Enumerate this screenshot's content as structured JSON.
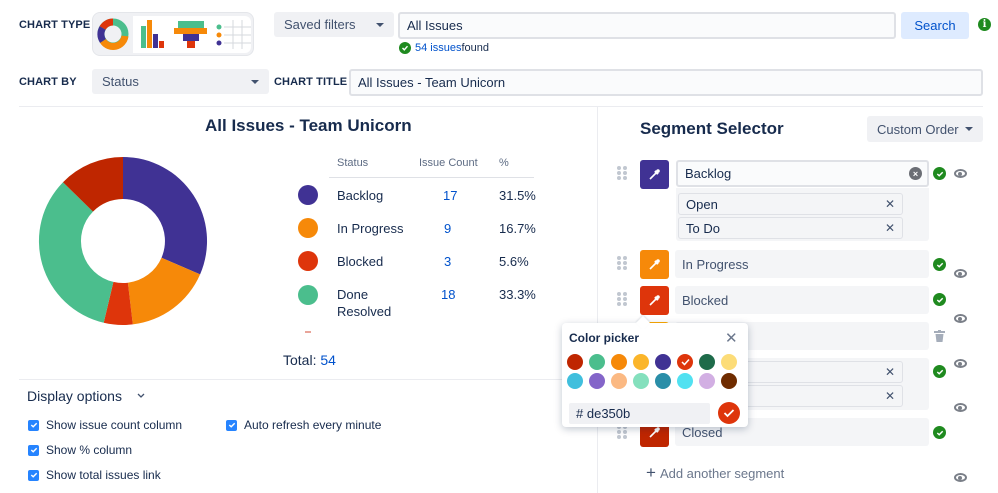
{
  "toolbar": {
    "chart_type_label": "CHART TYPE",
    "chart_types": [
      "donut-chart",
      "bar-chart",
      "funnel-chart",
      "table-chart"
    ],
    "saved_filters_label": "Saved filters",
    "filter_query": "All Issues",
    "search_label": "Search",
    "found_count": "54 issues",
    "found_suffix": " found",
    "chart_by_label": "CHART BY",
    "chart_by_value": "Status",
    "chart_title_label": "CHART TITLE",
    "chart_title_value": "All Issues - Team Unicorn"
  },
  "chart": {
    "title": "All Issues - Team Unicorn",
    "table_headers": {
      "status": "Status",
      "count": "Issue Count",
      "pct": "%"
    },
    "rows": [
      {
        "status": "Backlog",
        "count": "17",
        "pct": "31.5%",
        "color": "#403294"
      },
      {
        "status": "In Progress",
        "count": "9",
        "pct": "16.7%",
        "color": "#f68909"
      },
      {
        "status": "Blocked",
        "count": "3",
        "pct": "5.6%",
        "color": "#de350b"
      },
      {
        "status": "Done",
        "status2": "Resolved",
        "count": "18",
        "pct": "33.3%",
        "color": "#4bbe8d"
      }
    ],
    "total_label": "Total: ",
    "total_value": "54"
  },
  "chart_data": {
    "type": "pie",
    "title": "All Issues - Team Unicorn",
    "categories": [
      "Backlog",
      "In Progress",
      "Blocked",
      "Done / Resolved",
      "Closed"
    ],
    "values": [
      17,
      9,
      3,
      18,
      7
    ],
    "colors": [
      "#403294",
      "#f68909",
      "#de350b",
      "#4bbe8d",
      "#bf2600"
    ],
    "total": 54
  },
  "display_options": {
    "title": "Display options",
    "options": [
      {
        "label": "Show issue count column",
        "checked": true
      },
      {
        "label": "Show % column",
        "checked": true
      },
      {
        "label": "Show total issues link",
        "checked": true
      },
      {
        "label": "Auto refresh every minute",
        "checked": true
      }
    ]
  },
  "segments": {
    "title": "Segment Selector",
    "order_label": "Custom Order",
    "items": [
      {
        "name": "Backlog",
        "color": "#403294",
        "chips": [
          "Open",
          "To Do"
        ]
      },
      {
        "name": "In Progress",
        "color": "#f68909"
      },
      {
        "name": "Blocked",
        "color": "#de350b"
      },
      {
        "name": "",
        "color": "#ffab00"
      },
      {
        "name": "",
        "color": "#4bbe8d",
        "chips": [
          "",
          ""
        ]
      },
      {
        "name": "Closed",
        "color": "#bf2600"
      }
    ],
    "add_label": "Add another segment"
  },
  "color_picker": {
    "title": "Color picker",
    "hex_prefix": "#",
    "hex_value": "de350b",
    "colors": [
      "#bf2600",
      "#4bbe8d",
      "#f68909",
      "#fbb52a",
      "#403294",
      "#de350b",
      "#1e6b4a",
      "#fcdc78",
      "#40bfdd",
      "#8465c9",
      "#fbb983",
      "#84e0bd",
      "#2a8ea8",
      "#51e1f1",
      "#d2afe3",
      "#6f2c00"
    ],
    "selected": "#de350b"
  }
}
